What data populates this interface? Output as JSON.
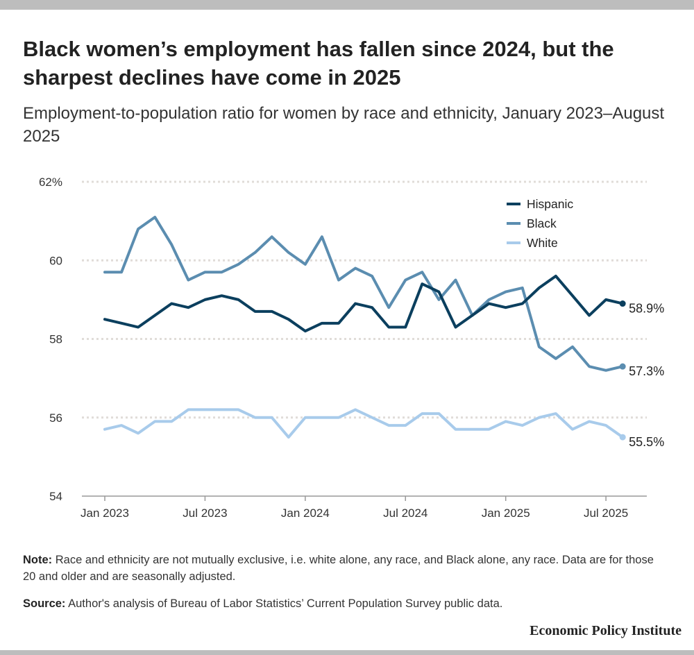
{
  "title": "Black women’s employment has fallen since 2024, but the sharpest declines have come in 2025",
  "subtitle": "Employment-to-population ratio for women by race and ethnicity, January 2023–August 2025",
  "note_label": "Note:",
  "note": "Race and ethnicity are not mutually exclusive, i.e. white alone, any race, and Black alone, any race. Data are for those 20 and older and are seasonally adjusted.",
  "source_label": "Source:",
  "source": "Author's analysis of Bureau of Labor Statistics’ Current Population Survey public data.",
  "logo": "Economic Policy Institute",
  "chart_data": {
    "type": "line",
    "title": "",
    "xlabel": "",
    "ylabel": "",
    "ylim": [
      54,
      62
    ],
    "y_ticks": [
      54,
      56,
      58,
      60,
      62
    ],
    "y_tick_labels": [
      "54",
      "56",
      "58",
      "60",
      "62%"
    ],
    "x_tick_labels": [
      "Jan 2023",
      "Jul 2023",
      "Jan 2024",
      "Jul 2024",
      "Jan 2025",
      "Jul 2025"
    ],
    "x_tick_month_index": [
      0,
      6,
      12,
      18,
      24,
      30
    ],
    "x_start": "2023-01",
    "x_end": "2025-08",
    "grid": "horizontal dotted",
    "legend_placement": "top-right",
    "series": [
      {
        "name": "Hispanic",
        "color": "#0b3f5e",
        "end_label": "58.9%",
        "values": [
          58.5,
          58.4,
          58.3,
          58.6,
          58.9,
          58.8,
          59.0,
          59.1,
          59.0,
          58.7,
          58.7,
          58.5,
          58.2,
          58.4,
          58.4,
          58.9,
          58.8,
          58.3,
          58.3,
          59.4,
          59.2,
          58.3,
          58.6,
          58.9,
          58.8,
          58.9,
          59.3,
          59.6,
          59.1,
          58.6,
          59.0,
          58.9
        ]
      },
      {
        "name": "Black",
        "color": "#5b8db0",
        "end_label": "57.3%",
        "values": [
          59.7,
          59.7,
          60.8,
          61.1,
          60.4,
          59.5,
          59.7,
          59.7,
          59.9,
          60.2,
          60.6,
          60.2,
          59.9,
          60.6,
          59.5,
          59.8,
          59.6,
          58.8,
          59.5,
          59.7,
          59.0,
          59.5,
          58.6,
          59.0,
          59.2,
          59.3,
          57.8,
          57.5,
          57.8,
          57.3,
          57.2,
          57.3
        ]
      },
      {
        "name": "White",
        "color": "#a8cbeb",
        "end_label": "55.5%",
        "values": [
          55.7,
          55.8,
          55.6,
          55.9,
          55.9,
          56.2,
          56.2,
          56.2,
          56.2,
          56.0,
          56.0,
          55.5,
          56.0,
          56.0,
          56.0,
          56.2,
          56.0,
          55.8,
          55.8,
          56.1,
          56.1,
          55.7,
          55.7,
          55.7,
          55.9,
          55.8,
          56.0,
          56.1,
          55.7,
          55.9,
          55.8,
          55.5
        ]
      }
    ]
  }
}
